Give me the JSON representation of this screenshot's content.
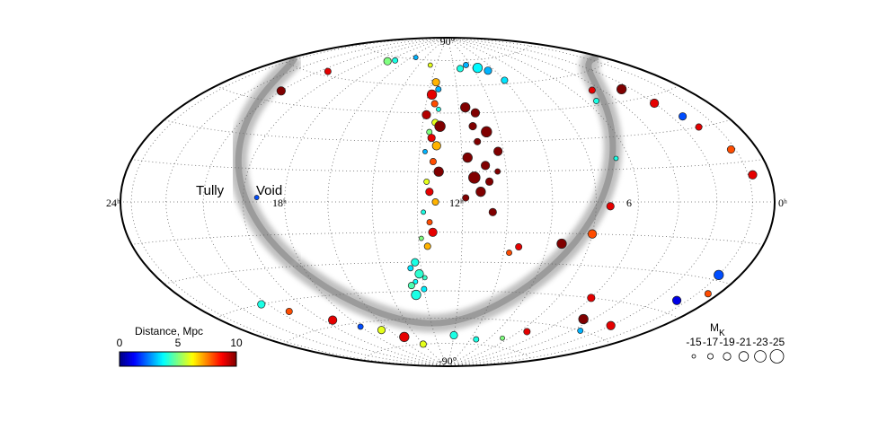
{
  "chart_data": {
    "type": "scatter",
    "projection": "hammer-aitoff",
    "annotations": [
      "Tully",
      "Void"
    ],
    "lat_labels": [
      {
        "value": 90,
        "label": "90°"
      },
      {
        "value": -90,
        "label": "-90°"
      }
    ],
    "lon_labels": [
      {
        "value": 24,
        "label": "24ʰ"
      },
      {
        "value": 18,
        "label": "18ʰ"
      },
      {
        "value": 12,
        "label": "12ʰ"
      },
      {
        "value": 6,
        "label": "6"
      },
      {
        "value": 0,
        "label": "0ʰ"
      }
    ],
    "colorbar": {
      "title": "Distance, Mpc",
      "lim": [
        0,
        10
      ],
      "ticks": [
        0,
        5,
        10
      ]
    },
    "size_legend": {
      "title": "M",
      "title_sub": "K",
      "values": [
        -15,
        -17,
        -19,
        -21,
        -23,
        -25
      ]
    },
    "x": [
      12.7,
      12.5,
      12.8,
      12.6,
      12.4,
      12.9,
      12.5,
      12.3,
      12.7,
      12.6,
      12.4,
      12.8,
      12.5,
      12.3,
      12.7,
      12.6,
      12.4,
      12.8,
      12.6,
      12.5,
      12.9,
      12.7,
      13.2,
      13.4,
      13.1,
      13.3,
      13.5,
      13.0,
      13.4,
      12.9,
      11.2,
      10.8,
      11.0,
      10.5,
      10.9,
      11.3,
      10.7,
      11.1,
      10.6,
      10.9,
      11.4,
      10.2,
      10.3,
      11.0,
      10.4,
      9.6,
      9.0,
      8.5,
      13.5,
      20.5,
      20.0,
      17.5,
      17.0,
      15.5,
      20.8,
      20.0,
      18.5,
      17.5,
      16.5,
      15.5,
      14.5,
      18.5,
      3.0,
      2.5,
      2.0,
      1.8,
      1.2,
      0.8,
      4.5,
      5.0,
      6.0,
      6.5,
      7.0,
      8.0,
      9.5,
      10.5,
      9.8,
      1.0,
      1.5,
      0.5,
      5.5,
      4.5,
      3.5,
      6.5,
      7.5,
      9.5,
      11.5,
      2.5
    ],
    "y": [
      62,
      58,
      55,
      50,
      47,
      44,
      40,
      38,
      35,
      32,
      28,
      25,
      20,
      15,
      10,
      5,
      0,
      -5,
      -10,
      -15,
      -18,
      -22,
      -30,
      -33,
      -36,
      -40,
      -42,
      -44,
      -47,
      -38,
      48,
      45,
      38,
      35,
      30,
      22,
      18,
      12,
      10,
      5,
      2,
      25,
      15,
      70,
      72,
      70,
      68,
      62,
      72,
      50,
      62,
      72,
      73,
      76,
      -45,
      -50,
      -57,
      -62,
      -65,
      -70,
      -75,
      2,
      50,
      42,
      35,
      30,
      20,
      10,
      52,
      47,
      20,
      -2,
      -15,
      -20,
      -22,
      -5,
      -25,
      -28,
      -40,
      -35,
      -45,
      -55,
      -60,
      -65,
      -70,
      -72,
      -70,
      -55
    ],
    "distance": [
      7,
      3,
      9,
      8,
      4,
      9.5,
      6,
      10,
      5,
      9,
      7,
      3,
      8,
      10,
      6,
      9,
      7,
      4,
      8,
      9,
      5,
      7,
      4,
      3.5,
      4.2,
      3.8,
      4.5,
      3.6,
      4,
      4.3,
      10,
      10,
      10,
      10,
      10,
      10,
      10,
      10,
      10,
      10,
      10,
      10,
      10,
      4,
      3,
      3.7,
      3,
      3.5,
      6,
      10,
      9,
      5,
      4,
      3,
      4,
      8,
      9,
      2,
      6,
      9,
      6,
      2,
      10,
      9,
      2,
      9,
      8,
      9,
      9,
      4,
      4,
      9,
      8,
      10,
      9,
      10,
      8,
      2,
      1,
      8,
      9,
      10,
      3,
      9,
      5,
      4,
      4,
      9
    ],
    "mk": [
      -19,
      -17,
      -21,
      -18,
      -16,
      -20,
      -18,
      -22,
      -17,
      -19,
      -20,
      -16,
      -18,
      -21,
      -17,
      -19,
      -18,
      -16,
      -17,
      -20,
      -16,
      -18,
      -19,
      -17,
      -20,
      -16,
      -18,
      -17,
      -21,
      -16,
      -21,
      -20,
      -19,
      -22,
      -18,
      -21,
      -20,
      -23,
      -19,
      -21,
      -18,
      -20,
      -17,
      -18,
      -17,
      -21,
      -19,
      -18,
      -16,
      -20,
      -18,
      -19,
      -17,
      -16,
      -19,
      -18,
      -20,
      -17,
      -19,
      -21,
      -18,
      -16,
      -21,
      -20,
      -19,
      -18,
      -19,
      -20,
      -18,
      -17,
      -16,
      -19,
      -20,
      -21,
      -18,
      -19,
      -17,
      -21,
      -20,
      -18,
      -19,
      -21,
      -17,
      -18,
      -16,
      -17,
      -19,
      -20
    ]
  }
}
